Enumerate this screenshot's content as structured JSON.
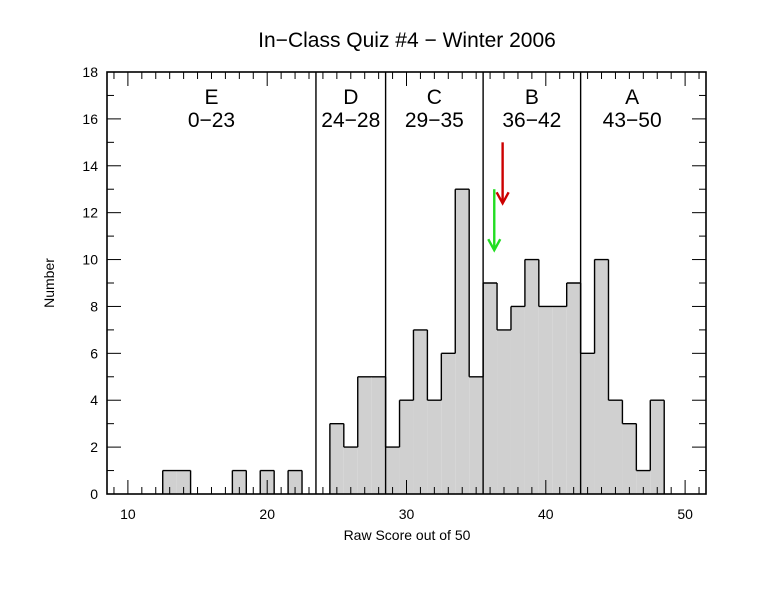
{
  "chart_data": {
    "type": "bar",
    "title": "In−Class Quiz #4 − Winter 2006",
    "xlabel": "Raw Score out of 50",
    "ylabel": "Number",
    "xlim": [
      8.5,
      51.5
    ],
    "ylim": [
      0,
      18
    ],
    "x_ticks": [
      10,
      20,
      30,
      40,
      50
    ],
    "y_ticks": [
      0,
      2,
      4,
      6,
      8,
      10,
      12,
      14,
      16,
      18
    ],
    "bin_width": 1,
    "bins": [
      {
        "score": 13,
        "count": 1
      },
      {
        "score": 14,
        "count": 1
      },
      {
        "score": 18,
        "count": 1
      },
      {
        "score": 20,
        "count": 1
      },
      {
        "score": 22,
        "count": 1
      },
      {
        "score": 25,
        "count": 3
      },
      {
        "score": 26,
        "count": 2
      },
      {
        "score": 27,
        "count": 5
      },
      {
        "score": 28,
        "count": 5
      },
      {
        "score": 29,
        "count": 2
      },
      {
        "score": 30,
        "count": 4
      },
      {
        "score": 31,
        "count": 7
      },
      {
        "score": 32,
        "count": 4
      },
      {
        "score": 33,
        "count": 6
      },
      {
        "score": 34,
        "count": 13
      },
      {
        "score": 35,
        "count": 5
      },
      {
        "score": 36,
        "count": 9
      },
      {
        "score": 37,
        "count": 7
      },
      {
        "score": 38,
        "count": 8
      },
      {
        "score": 39,
        "count": 10
      },
      {
        "score": 40,
        "count": 8
      },
      {
        "score": 41,
        "count": 8
      },
      {
        "score": 42,
        "count": 9
      },
      {
        "score": 43,
        "count": 6
      },
      {
        "score": 44,
        "count": 10
      },
      {
        "score": 45,
        "count": 4
      },
      {
        "score": 46,
        "count": 3
      },
      {
        "score": 47,
        "count": 1
      },
      {
        "score": 48,
        "count": 4
      }
    ],
    "boundaries": [
      23.5,
      28.5,
      35.5,
      42.5
    ],
    "grades": [
      {
        "letter": "E",
        "range": "0−23",
        "center": 16
      },
      {
        "letter": "D",
        "range": "24−28",
        "center": 26
      },
      {
        "letter": "C",
        "range": "29−35",
        "center": 32
      },
      {
        "letter": "B",
        "range": "36−42",
        "center": 39
      },
      {
        "letter": "A",
        "range": "43−50",
        "center": 46.2
      }
    ],
    "markers": [
      {
        "color": "#cc0000",
        "x": 36.9,
        "y_top": 15,
        "y_bottom": 12.4
      },
      {
        "color": "#22dd22",
        "x": 36.3,
        "y_top": 13,
        "y_bottom": 10.4
      }
    ],
    "bar_fill": "#d0d0d0",
    "line_color": "#000000"
  }
}
